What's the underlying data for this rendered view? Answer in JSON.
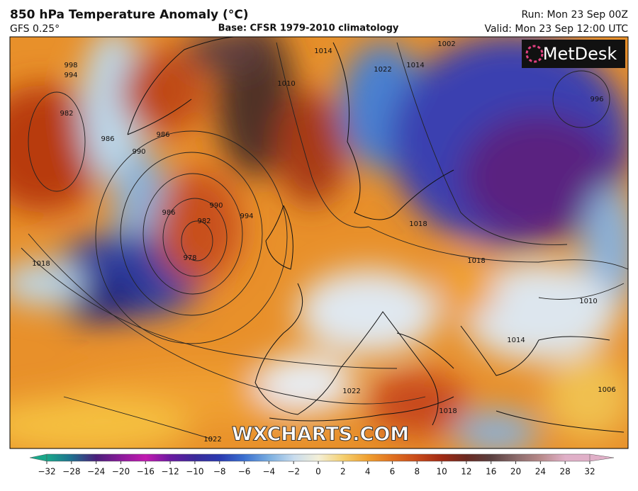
{
  "header": {
    "title": "850 hPa Temperature Anomaly (°C)",
    "model": "GFS 0.25°",
    "base": "Base: CFSR 1979-2010 climatology",
    "run": "Run: Mon 23 Sep 00Z",
    "valid": "Valid: Mon 23 Sep 12:00 UTC"
  },
  "logo": "MetDesk",
  "watermark": "WXCHARTS.COM",
  "contour_labels": [
    "998",
    "994",
    "982",
    "986",
    "990",
    "986",
    "990",
    "994",
    "982",
    "978",
    "986",
    "1018",
    "1010",
    "1014",
    "1002",
    "1014",
    "1022",
    "1022",
    "1018",
    "1018",
    "1010",
    "1014",
    "1018",
    "1006",
    "1022",
    "996"
  ],
  "colorbar": {
    "ticks": [
      {
        "value": -32,
        "label": "−32"
      },
      {
        "value": -28,
        "label": "−28"
      },
      {
        "value": -24,
        "label": "−24"
      },
      {
        "value": -20,
        "label": "−20"
      },
      {
        "value": -16,
        "label": "−16"
      },
      {
        "value": -12,
        "label": "−12"
      },
      {
        "value": -10,
        "label": "−10"
      },
      {
        "value": -8,
        "label": "−8"
      },
      {
        "value": -6,
        "label": "−6"
      },
      {
        "value": -4,
        "label": "−4"
      },
      {
        "value": -2,
        "label": "−2"
      },
      0,
      2,
      4,
      6,
      8,
      10,
      12,
      16,
      20,
      24,
      28,
      32
    ],
    "colors": [
      "#1aa88a",
      "#1f6f8f",
      "#4a1f7a",
      "#8a1a9a",
      "#c21ab0",
      "#6a1aa0",
      "#3a2a9a",
      "#2a3ab0",
      "#3a70d0",
      "#7aaee0",
      "#c8dcee",
      "#f4f0d8",
      "#f5d070",
      "#f0a030",
      "#e07020",
      "#c84a1a",
      "#a02a14",
      "#6a2a22",
      "#5a4040",
      "#8a6a6a",
      "#b88a8a",
      "#e0b0c8"
    ]
  }
}
